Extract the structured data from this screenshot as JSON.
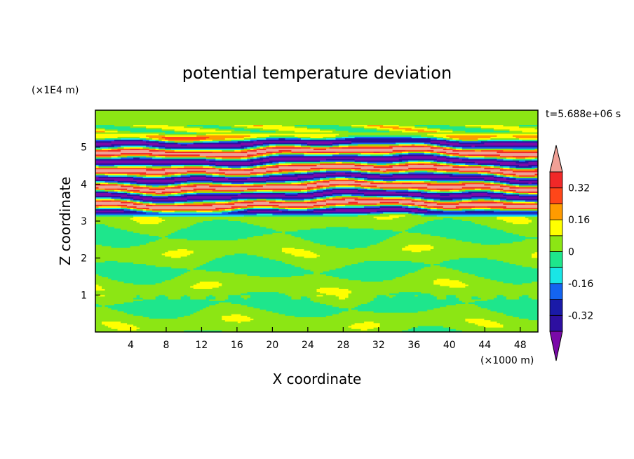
{
  "chart_data": {
    "type": "heatmap",
    "title": "potential temperature deviation",
    "time_label": "t=5.688e+06 s",
    "xlabel": "X coordinate",
    "ylabel": "Z coordinate",
    "x_unit": "(×1000 m)",
    "y_unit": "(×1E4 m)",
    "xlim": [
      0,
      50
    ],
    "ylim": [
      0,
      6
    ],
    "x_ticks": [
      "4",
      "8",
      "12",
      "16",
      "20",
      "24",
      "28",
      "32",
      "36",
      "40",
      "44",
      "48"
    ],
    "y_ticks": [
      "1",
      "2",
      "3",
      "4",
      "5"
    ],
    "colorbar": {
      "levels": [
        -0.4,
        -0.32,
        -0.24,
        -0.16,
        -0.08,
        0,
        0.08,
        0.16,
        0.24,
        0.32,
        0.4
      ],
      "colors": [
        "#7a0aa8",
        "#2d0fa0",
        "#1a1aa8",
        "#1464f0",
        "#19e6e6",
        "#1ee68c",
        "#8ce614",
        "#ffff00",
        "#ff9b00",
        "#ff4619",
        "#f02828",
        "#f0a096"
      ],
      "labels": [
        "0.32",
        "0.16",
        "0",
        "-0.16",
        "-0.32"
      ],
      "extend": "both"
    }
  }
}
